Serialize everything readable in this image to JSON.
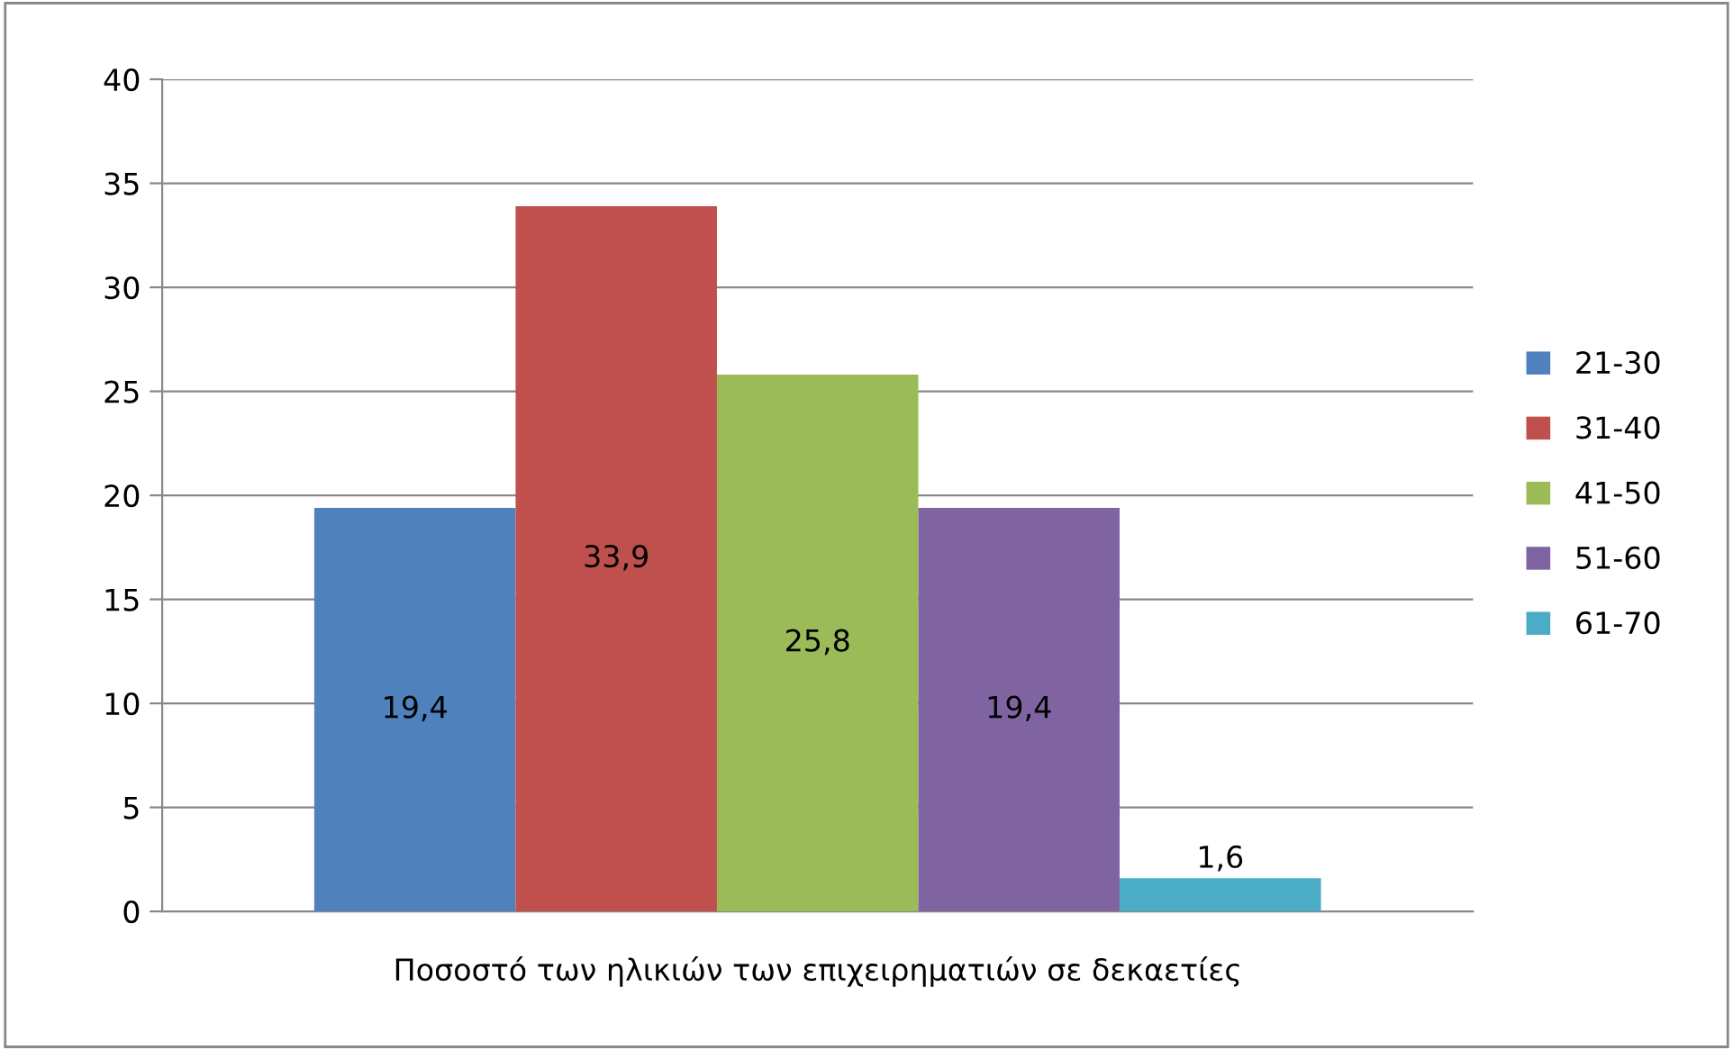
{
  "chart_data": {
    "type": "bar",
    "categories": [
      "Ποσοστό των ηλικιών των επιχειρηματιών σε δεκαετίες"
    ],
    "series": [
      {
        "name": "21-30",
        "color": "#4f81bd",
        "values": [
          19.4
        ],
        "value_labels": [
          "19,4"
        ]
      },
      {
        "name": "31-40",
        "color": "#c0504d",
        "values": [
          33.9
        ],
        "value_labels": [
          "33,9"
        ]
      },
      {
        "name": "41-50",
        "color": "#9bbb59",
        "values": [
          25.8
        ],
        "value_labels": [
          "25,8"
        ]
      },
      {
        "name": "51-60",
        "color": "#8064a2",
        "values": [
          19.4
        ],
        "value_labels": [
          "19,4"
        ]
      },
      {
        "name": "61-70",
        "color": "#4bacc6",
        "values": [
          1.6
        ],
        "value_labels": [
          "1,6"
        ]
      }
    ],
    "ylim": [
      0,
      40
    ],
    "yticks": [
      0,
      5,
      10,
      15,
      20,
      25,
      30,
      35,
      40
    ],
    "grid": "y",
    "legend": "right"
  }
}
